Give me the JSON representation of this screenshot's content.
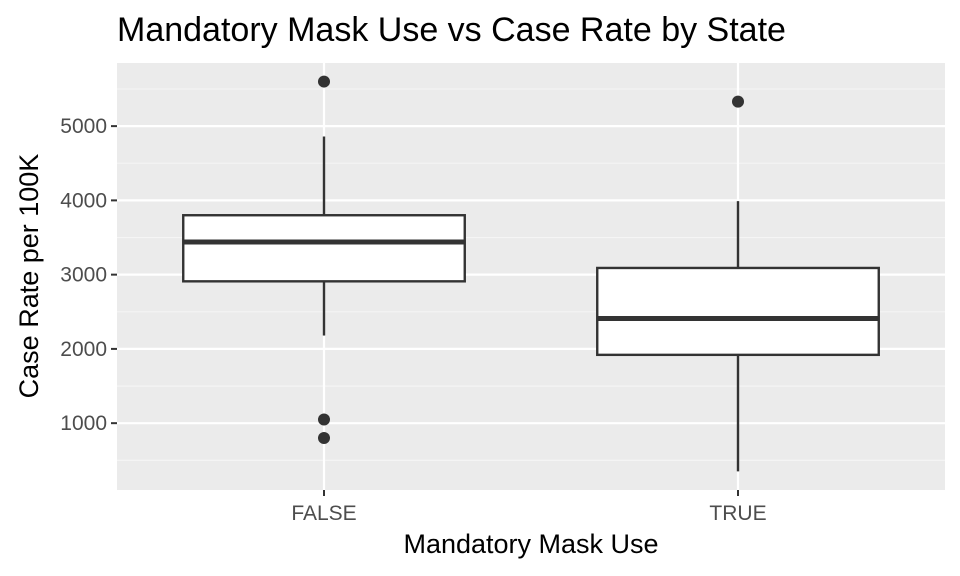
{
  "chart_data": {
    "type": "box",
    "title": "Mandatory Mask Use vs Case Rate by State",
    "xlabel": "Mandatory Mask Use",
    "ylabel": "Case Rate per 100K",
    "categories": [
      "FALSE",
      "TRUE"
    ],
    "ylim": [
      100,
      5850
    ],
    "y_ticks": [
      1000,
      2000,
      3000,
      4000,
      5000
    ],
    "y_tick_labels": [
      "1000",
      "2000",
      "3000",
      "4000",
      "5000"
    ],
    "grid": true,
    "boxes": [
      {
        "category": "FALSE",
        "whisker_low": 2180,
        "q1": 2910,
        "median": 3440,
        "q3": 3800,
        "whisker_high": 4860,
        "outliers": [
          5600,
          1050,
          800
        ]
      },
      {
        "category": "TRUE",
        "whisker_low": 350,
        "q1": 1920,
        "median": 2410,
        "q3": 3090,
        "whisker_high": 3990,
        "outliers": [
          5330
        ]
      }
    ]
  },
  "colors": {
    "panel_background": "#ebebeb",
    "grid_major": "#ffffff",
    "grid_minor": "#f5f5f5",
    "box_fill": "#ffffff",
    "box_stroke": "#333333",
    "tick_text": "#4d4d4d"
  }
}
